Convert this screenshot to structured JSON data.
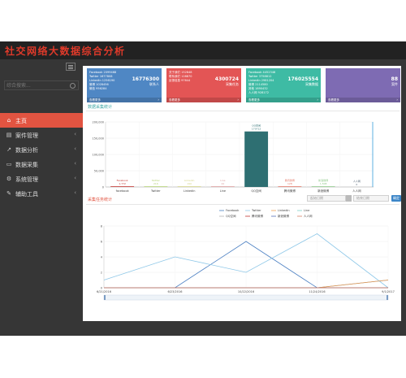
{
  "app": {
    "title": "社交网络大数据综合分析"
  },
  "sidebar": {
    "search_placeholder": "综合搜索...",
    "items": [
      {
        "label": "主页",
        "icon": "home-icon",
        "glyph": "⌂",
        "active": true
      },
      {
        "label": "案件管理",
        "icon": "folder-icon",
        "glyph": "▤",
        "active": false
      },
      {
        "label": "数据分析",
        "icon": "chart-line-icon",
        "glyph": "↗",
        "active": false
      },
      {
        "label": "数据采集",
        "icon": "download-icon",
        "glyph": "▭",
        "active": false
      },
      {
        "label": "系统管理",
        "icon": "gear-icon",
        "glyph": "⚙",
        "active": false
      },
      {
        "label": "辅助工具",
        "icon": "wrench-icon",
        "glyph": "✎",
        "active": false
      }
    ]
  },
  "cards": [
    {
      "color": "#4f87c4",
      "lines": [
        "Facebook 2099468",
        "Twitter 1677808",
        "LinkedIn 1256190",
        "微博 1028456",
        "微信 956284"
      ],
      "value": "16776300",
      "label": "联系人",
      "foot": "查看更多"
    },
    {
      "color": "#e35555",
      "lines": [
        "关于我们 152848",
        "联系我们 128870",
        "反馈信息 97644"
      ],
      "value": "4300724",
      "label": "采集任务",
      "foot": "查看更多"
    },
    {
      "color": "#3ebba4",
      "lines": [
        "Facebook 4452346",
        "Twitter 3758812",
        "LinkedIn 2981204",
        "微博 2114580",
        "其他 1890432",
        "人人网 928172"
      ],
      "value": "176025554",
      "label": "采集数据",
      "foot": "查看更多"
    },
    {
      "color": "#7e6bb3",
      "lines": [],
      "value": "88",
      "label": "案件",
      "foot": "查看更多"
    }
  ],
  "section1": {
    "title": "数据采集统计"
  },
  "section2": {
    "title": "采集任务统计",
    "date_from_placeholder": "起始日期",
    "date_to_placeholder": "结束日期",
    "query_label": "确定"
  },
  "chart_data": [
    {
      "type": "bar",
      "categories": [
        "facebook",
        "Twitter",
        "Linkedin",
        "Line",
        "QQ空间",
        "腾讯微博",
        "新浪微博",
        "人人网"
      ],
      "values": [
        1772,
        216,
        190,
        42,
        170712,
        128,
        1508,
        0
      ],
      "value_labels": [
        "Facebook\n1,772",
        "Twitter\n216",
        "Linkedin\n190",
        "Line\n42",
        "QQ空间\n170712",
        "腾讯微博\n128",
        "新浪微博\n1,508",
        "人人网\n0"
      ],
      "y_ticks": [
        "200,000",
        "150,000",
        "100,000",
        "50,000",
        "0"
      ],
      "ylim": [
        0,
        200000
      ],
      "colors": [
        "#c23531",
        "#b5d277",
        "#d4d48a",
        "#dca0a0",
        "#2e6f72",
        "#e37a6a",
        "#8fc98a",
        "#556677"
      ],
      "grid": true
    },
    {
      "type": "line",
      "x": [
        "6/21/2016",
        "6/23/2016",
        "10/22/2016",
        "11/24/2016",
        "9/1/2017"
      ],
      "series": [
        {
          "name": "Facebook",
          "values": [
            0,
            0,
            6,
            0,
            1
          ],
          "color": "#4a7fc2"
        },
        {
          "name": "Twitter",
          "values": [
            1,
            4,
            2,
            7,
            0
          ],
          "color": "#8fc8e8"
        },
        {
          "name": "Linkedin",
          "values": [
            0,
            0,
            0,
            0,
            1
          ],
          "color": "#f0a050"
        },
        {
          "name": "Line",
          "values": [
            0,
            0,
            0,
            0,
            0
          ],
          "color": "#7ed2c8"
        },
        {
          "name": "QQ空间",
          "values": [
            0,
            0,
            0,
            0,
            0
          ],
          "color": "#b0b0b0"
        },
        {
          "name": "腾讯微博",
          "values": [
            0,
            0,
            0,
            0,
            0
          ],
          "color": "#c23531"
        },
        {
          "name": "新浪微博",
          "values": [
            0,
            0,
            0,
            0,
            0
          ],
          "color": "#556fb5"
        },
        {
          "name": "人人网",
          "values": [
            0,
            0,
            0,
            0,
            0
          ],
          "color": "#d48265"
        }
      ],
      "y_ticks": [
        "8",
        "6",
        "4",
        "2",
        "0"
      ],
      "ylim": [
        0,
        8
      ],
      "legend_position": "top",
      "grid": true
    }
  ]
}
